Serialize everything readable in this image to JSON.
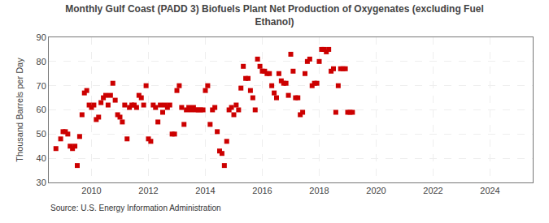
{
  "chart_data": {
    "type": "scatter",
    "title": "Monthly Gulf Coast (PADD 3) Biofuels Plant Net Production of Oxygenates (excluding Fuel\nEthanol)",
    "ylabel": "Thousand Barrels per Day",
    "annotations": [
      "Source: U.S. Energy Information Administration"
    ],
    "color": "#cc0000",
    "marker": "square",
    "grid": true,
    "ylim": [
      30,
      90
    ],
    "yticks": [
      30,
      40,
      50,
      60,
      70,
      80,
      90
    ],
    "xlim": [
      2008.5,
      2025.5
    ],
    "xticks": [
      2010,
      2012,
      2014,
      2016,
      2018,
      2020,
      2022,
      2024
    ],
    "x": [
      2008.75,
      2008.917,
      2009.0,
      2009.083,
      2009.167,
      2009.25,
      2009.333,
      2009.417,
      2009.5,
      2009.583,
      2009.667,
      2009.75,
      2009.833,
      2009.917,
      2010.0,
      2010.083,
      2010.167,
      2010.25,
      2010.333,
      2010.417,
      2010.5,
      2010.583,
      2010.667,
      2010.75,
      2010.833,
      2010.917,
      2011.0,
      2011.083,
      2011.167,
      2011.25,
      2011.333,
      2011.417,
      2011.5,
      2011.583,
      2011.667,
      2011.75,
      2011.833,
      2011.917,
      2012.0,
      2012.083,
      2012.167,
      2012.25,
      2012.333,
      2012.417,
      2012.5,
      2012.583,
      2012.667,
      2012.75,
      2012.833,
      2012.917,
      2013.0,
      2013.083,
      2013.167,
      2013.25,
      2013.333,
      2013.417,
      2013.5,
      2013.583,
      2013.667,
      2013.75,
      2013.833,
      2013.917,
      2014.0,
      2014.083,
      2014.167,
      2014.25,
      2014.333,
      2014.417,
      2014.5,
      2014.583,
      2014.667,
      2014.75,
      2014.833,
      2014.917,
      2015.0,
      2015.083,
      2015.167,
      2015.25,
      2015.333,
      2015.417,
      2015.5,
      2015.583,
      2015.667,
      2015.75,
      2015.833,
      2015.917,
      2016.0,
      2016.083,
      2016.167,
      2016.25,
      2016.333,
      2016.417,
      2016.5,
      2016.583,
      2016.667,
      2016.75,
      2016.833,
      2016.917,
      2017.0,
      2017.083,
      2017.167,
      2017.25,
      2017.333,
      2017.417,
      2017.5,
      2017.583,
      2017.667,
      2017.75,
      2017.833,
      2017.917,
      2018.0,
      2018.083,
      2018.167,
      2018.25,
      2018.333,
      2018.417,
      2018.5,
      2018.583,
      2018.667,
      2018.75,
      2018.833,
      2018.917,
      2019.0,
      2019.083,
      2019.167
    ],
    "values": [
      44,
      48,
      51,
      51,
      50,
      45,
      44,
      45,
      37,
      49,
      58,
      67,
      68,
      62,
      61,
      62,
      56,
      57,
      63,
      65,
      66,
      62,
      66,
      71,
      64,
      58,
      57,
      55,
      62,
      48,
      61,
      62,
      62,
      61,
      66,
      65,
      62,
      70,
      48,
      47,
      62,
      61,
      55,
      62,
      59,
      62,
      61,
      62,
      50,
      50,
      68,
      70,
      61,
      54,
      60,
      61,
      60,
      61,
      60,
      60,
      60,
      60,
      68,
      70,
      54,
      60,
      61,
      51,
      43,
      42,
      37,
      47,
      60,
      61,
      58,
      62,
      60,
      69,
      78,
      73,
      73,
      68,
      65,
      60,
      81,
      78,
      76,
      76,
      75,
      75,
      70,
      67,
      65,
      75,
      72,
      71,
      71,
      66,
      83,
      76,
      65,
      65,
      58,
      59,
      75,
      80,
      81,
      70,
      71,
      71,
      80,
      85,
      85,
      84,
      85,
      76,
      77,
      59,
      70,
      77,
      77,
      77,
      59,
      59,
      59
    ]
  }
}
